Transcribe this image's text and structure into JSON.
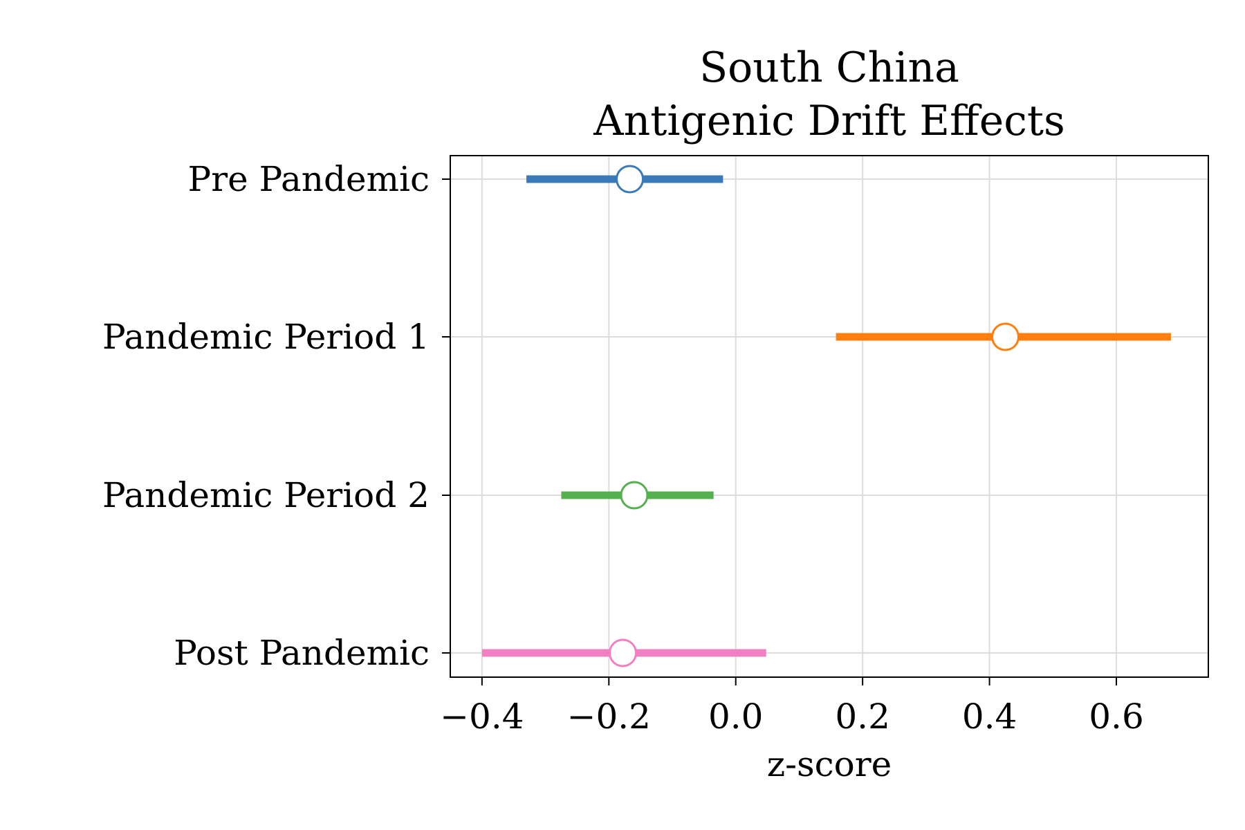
{
  "chart_data": {
    "type": "scatter",
    "subtype": "forest-plot",
    "title": [
      "South China",
      "Antigenic Drift Effects"
    ],
    "xlabel": "z-score",
    "ylabel": "",
    "xlim": [
      -0.45,
      0.745
    ],
    "xticks": [
      -0.4,
      -0.2,
      0.0,
      0.2,
      0.4,
      0.6
    ],
    "xtick_labels": [
      "−0.4",
      "−0.2",
      "0.0",
      "0.2",
      "0.4",
      "0.6"
    ],
    "grid": true,
    "legend": "none",
    "categories": [
      "Pre Pandemic",
      "Pandemic Period 1",
      "Pandemic Period 2",
      "Post Pandemic"
    ],
    "series": [
      {
        "estimate": -0.167,
        "ci_low": -0.33,
        "ci_high": -0.02,
        "color": "#3a7ab8"
      },
      {
        "estimate": 0.425,
        "ci_low": 0.158,
        "ci_high": 0.686,
        "color": "#ff7f0e"
      },
      {
        "estimate": -0.16,
        "ci_low": -0.275,
        "ci_high": -0.035,
        "color": "#55b04f"
      },
      {
        "estimate": -0.178,
        "ci_low": -0.4,
        "ci_high": 0.048,
        "color": "#f27fc3"
      }
    ]
  }
}
